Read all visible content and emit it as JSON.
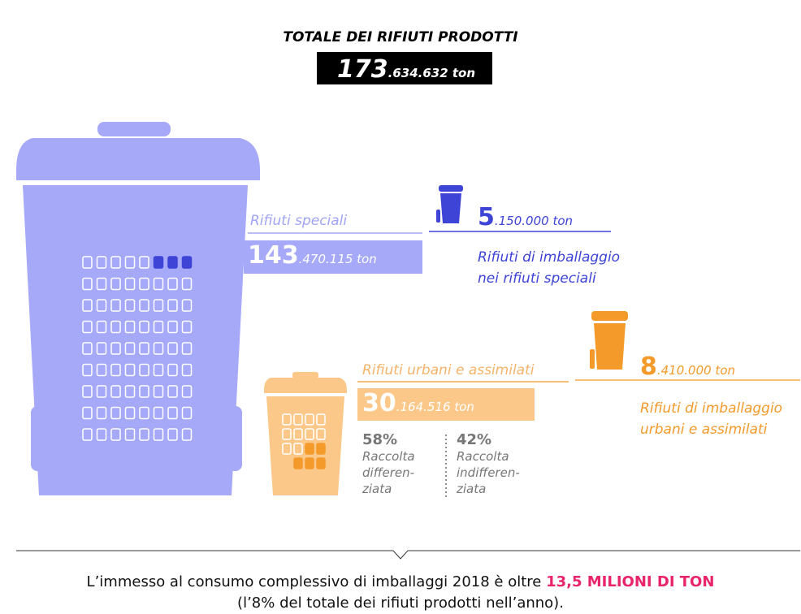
{
  "title": "TOTALE DEI RIFIUTI PRODOTTI",
  "total": {
    "big": "173",
    "rest": ".634.632 ton"
  },
  "speciali": {
    "label": "Rifiuti speciali",
    "big": "143",
    "rest": ".470.115 ton"
  },
  "imballaggio_speciali": {
    "big": "5",
    "rest": ".150.000 ton",
    "lines": [
      "Rifiuti di imballaggio",
      "nei rifiuti speciali"
    ]
  },
  "urbani": {
    "label": "Rifiuti urbani e assimilati",
    "big": "30",
    "rest": ".164.516 ton",
    "split": [
      {
        "pct": "58%",
        "lines": [
          "Raccolta",
          "differen-",
          "ziata"
        ]
      },
      {
        "pct": "42%",
        "lines": [
          "Raccolta",
          "indifferen-",
          "ziata"
        ]
      }
    ]
  },
  "imballaggio_urbani": {
    "big": "8",
    "rest": ".410.000 ton",
    "lines": [
      "Rifiuti di imballaggio",
      "urbani e assimilati"
    ]
  },
  "footer": {
    "line1_before": "L’immesso al consumo complessivo di imballaggi 2018 è oltre ",
    "line1_highlight": "13,5 MILIONI DI TON",
    "line2": "(l’8% del totale dei rifiuti prodotti nell’anno)."
  }
}
